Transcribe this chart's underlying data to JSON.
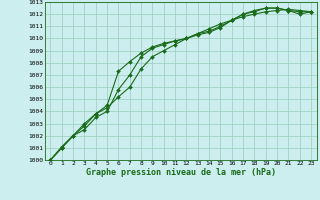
{
  "title": "Graphe pression niveau de la mer (hPa)",
  "bg_color": "#cceeee",
  "grid_color": "#99ccbb",
  "line_color": "#1a6b1a",
  "marker_color": "#1a6b1a",
  "xlim": [
    -0.5,
    23.5
  ],
  "ylim": [
    1000,
    1013
  ],
  "xticks": [
    0,
    1,
    2,
    3,
    4,
    5,
    6,
    7,
    8,
    9,
    10,
    11,
    12,
    13,
    14,
    15,
    16,
    17,
    18,
    19,
    20,
    21,
    22,
    23
  ],
  "yticks": [
    1000,
    1001,
    1002,
    1003,
    1004,
    1005,
    1006,
    1007,
    1008,
    1009,
    1010,
    1011,
    1012,
    1013
  ],
  "line1_x": [
    0,
    1,
    2,
    3,
    4,
    5,
    6,
    7,
    8,
    9,
    10,
    11,
    12,
    13,
    14,
    15,
    16,
    17,
    18,
    19,
    20,
    21,
    22,
    23
  ],
  "line1_y": [
    1000.0,
    1001.1,
    1002.0,
    1002.8,
    1003.8,
    1004.5,
    1007.3,
    1008.1,
    1008.8,
    1009.3,
    1009.6,
    1009.8,
    1010.0,
    1010.4,
    1010.8,
    1011.2,
    1011.5,
    1012.0,
    1012.3,
    1012.5,
    1012.5,
    1012.3,
    1012.2,
    1012.2
  ],
  "line2_x": [
    0,
    1,
    2,
    3,
    4,
    5,
    6,
    7,
    8,
    9,
    10,
    11,
    12,
    13,
    14,
    15,
    16,
    17,
    18,
    19,
    20,
    21,
    22,
    23
  ],
  "line2_y": [
    1000.0,
    1001.0,
    1002.0,
    1003.0,
    1003.8,
    1004.3,
    1005.2,
    1006.0,
    1007.5,
    1008.5,
    1009.0,
    1009.5,
    1010.0,
    1010.4,
    1010.6,
    1011.0,
    1011.5,
    1011.8,
    1012.0,
    1012.2,
    1012.3,
    1012.4,
    1012.3,
    1012.2
  ],
  "line3_x": [
    0,
    1,
    2,
    3,
    4,
    5,
    6,
    7,
    8,
    9,
    10,
    11,
    12,
    13,
    14,
    15,
    16,
    17,
    18,
    19,
    20,
    21,
    22,
    23
  ],
  "line3_y": [
    1000.0,
    1001.0,
    1002.0,
    1002.5,
    1003.5,
    1004.0,
    1005.8,
    1007.0,
    1008.5,
    1009.2,
    1009.5,
    1009.8,
    1010.0,
    1010.3,
    1010.5,
    1010.9,
    1011.5,
    1012.0,
    1012.2,
    1012.5,
    1012.5,
    1012.3,
    1012.0,
    1012.2
  ]
}
